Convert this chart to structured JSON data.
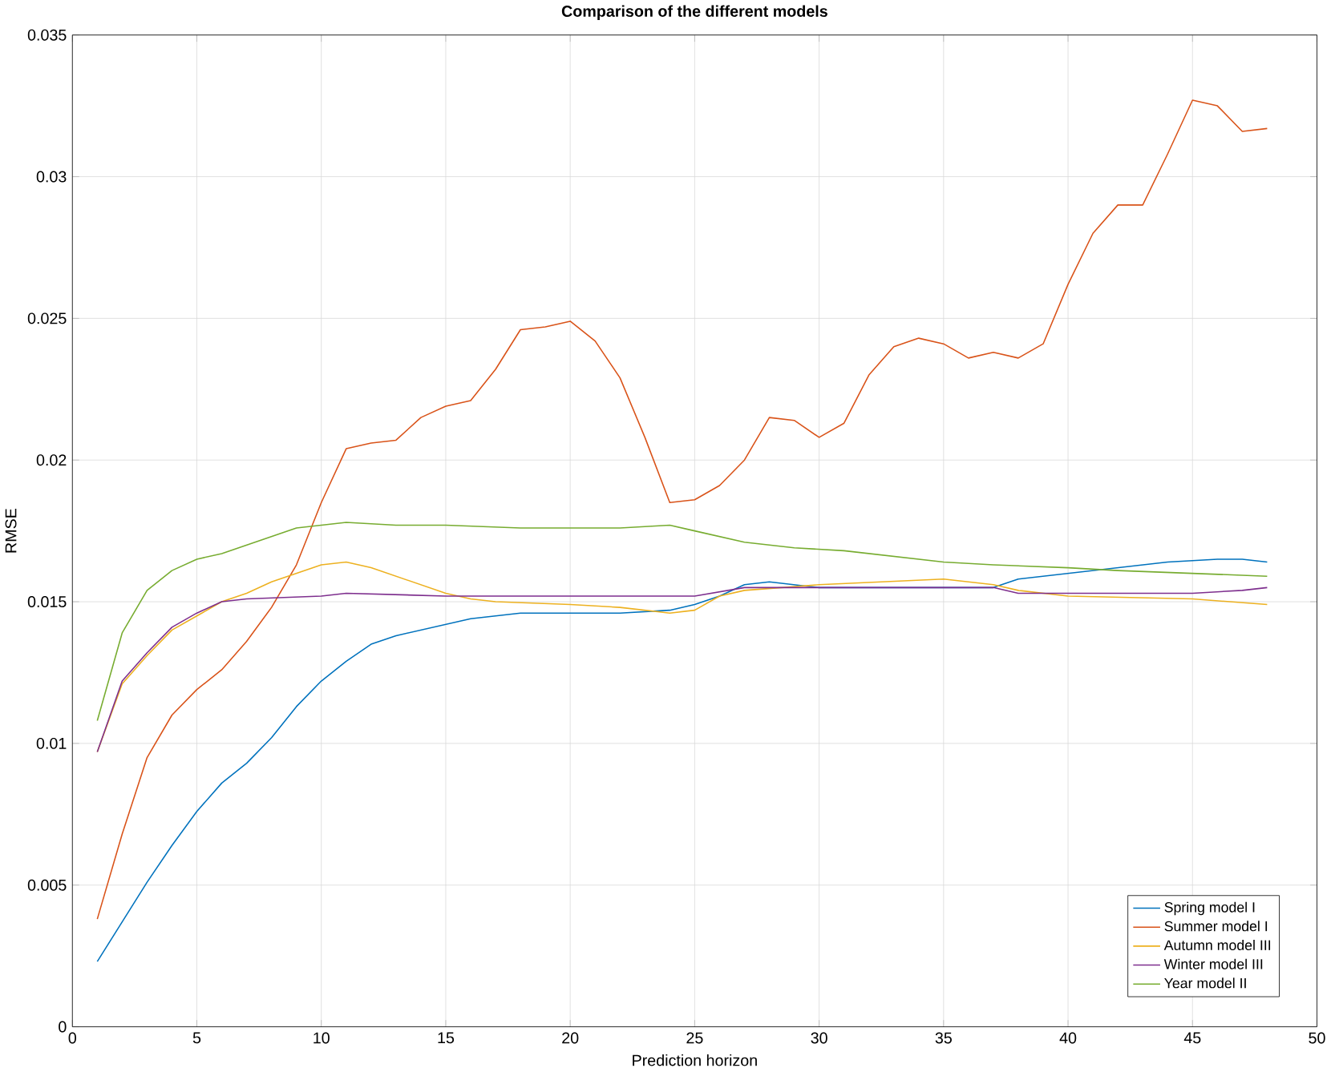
{
  "chart_data": {
    "type": "line",
    "title": "Comparison of the different models",
    "xlabel": "Prediction horizon",
    "ylabel": "RMSE",
    "xlim": [
      0,
      50
    ],
    "xticks": [
      0,
      5,
      10,
      15,
      20,
      25,
      30,
      35,
      40,
      45,
      50
    ],
    "ylim": [
      0,
      0.035
    ],
    "yticks": [
      0,
      0.005,
      0.01,
      0.015,
      0.02,
      0.025,
      0.03,
      0.035
    ],
    "grid": true,
    "legend": "bottom right",
    "line_style": "solid",
    "series": [
      {
        "name": "Spring model I",
        "color": "#0072bd",
        "x": [
          1,
          2,
          3,
          4,
          5,
          6,
          7,
          8,
          9,
          10,
          11,
          12,
          13,
          14,
          15,
          16,
          17,
          18,
          19,
          20,
          22,
          24,
          25,
          26,
          27,
          28,
          30,
          35,
          37,
          38,
          40,
          42,
          44,
          46,
          47,
          48
        ],
        "values": [
          0.0023,
          0.0037,
          0.0051,
          0.0064,
          0.0076,
          0.0086,
          0.0093,
          0.0102,
          0.0113,
          0.0122,
          0.0129,
          0.0135,
          0.0138,
          0.014,
          0.0142,
          0.0144,
          0.0145,
          0.0146,
          0.0146,
          0.0146,
          0.0146,
          0.0147,
          0.0149,
          0.0152,
          0.0156,
          0.0157,
          0.0155,
          0.0155,
          0.0155,
          0.0158,
          0.016,
          0.0162,
          0.0164,
          0.0165,
          0.0165,
          0.0164
        ]
      },
      {
        "name": "Summer model I",
        "color": "#d95319",
        "x": [
          1,
          2,
          3,
          4,
          5,
          6,
          7,
          8,
          9,
          10,
          11,
          12,
          13,
          14,
          15,
          16,
          17,
          18,
          19,
          20,
          21,
          22,
          23,
          24,
          25,
          26,
          27,
          28,
          29,
          30,
          31,
          32,
          33,
          34,
          35,
          36,
          37,
          38,
          39,
          40,
          41,
          42,
          43,
          44,
          45,
          46,
          47,
          48
        ],
        "values": [
          0.0038,
          0.0068,
          0.0095,
          0.011,
          0.0119,
          0.0126,
          0.0136,
          0.0148,
          0.0163,
          0.0185,
          0.0204,
          0.0206,
          0.0207,
          0.0215,
          0.0219,
          0.0221,
          0.0232,
          0.0246,
          0.0247,
          0.0249,
          0.0242,
          0.0229,
          0.0208,
          0.0185,
          0.0186,
          0.0191,
          0.02,
          0.0215,
          0.0214,
          0.0208,
          0.0213,
          0.023,
          0.024,
          0.0243,
          0.0241,
          0.0236,
          0.0238,
          0.0236,
          0.0241,
          0.0262,
          0.028,
          0.029,
          0.029,
          0.0308,
          0.0327,
          0.0325,
          0.0316,
          0.0317
        ]
      },
      {
        "name": "Autumn model III",
        "color": "#edb120",
        "x": [
          1,
          2,
          3,
          4,
          5,
          6,
          7,
          8,
          9,
          10,
          11,
          12,
          13,
          14,
          15,
          16,
          17,
          20,
          22,
          24,
          25,
          26,
          27,
          30,
          35,
          37,
          38,
          40,
          45,
          48
        ],
        "values": [
          0.0097,
          0.0121,
          0.0131,
          0.014,
          0.0145,
          0.015,
          0.0153,
          0.0157,
          0.016,
          0.0163,
          0.0164,
          0.0162,
          0.0159,
          0.0156,
          0.0153,
          0.0151,
          0.015,
          0.0149,
          0.0148,
          0.0146,
          0.0147,
          0.0152,
          0.0154,
          0.0156,
          0.0158,
          0.0156,
          0.0154,
          0.0152,
          0.0151,
          0.0149
        ]
      },
      {
        "name": "Winter model III",
        "color": "#7e2f8e",
        "x": [
          1,
          2,
          3,
          4,
          5,
          6,
          7,
          10,
          11,
          15,
          20,
          25,
          27,
          30,
          35,
          37,
          38,
          40,
          45,
          47,
          48
        ],
        "values": [
          0.0097,
          0.0122,
          0.0132,
          0.0141,
          0.0146,
          0.015,
          0.0151,
          0.0152,
          0.0153,
          0.0152,
          0.0152,
          0.0152,
          0.0155,
          0.0155,
          0.0155,
          0.0155,
          0.0153,
          0.0153,
          0.0153,
          0.0154,
          0.0155
        ]
      },
      {
        "name": "Year model II",
        "color": "#77ac30",
        "x": [
          1,
          2,
          3,
          4,
          5,
          6,
          7,
          8,
          9,
          10,
          11,
          13,
          15,
          18,
          20,
          22,
          24,
          25,
          27,
          29,
          31,
          33,
          35,
          37,
          40,
          42,
          45,
          48
        ],
        "values": [
          0.0108,
          0.0139,
          0.0154,
          0.0161,
          0.0165,
          0.0167,
          0.017,
          0.0173,
          0.0176,
          0.0177,
          0.0178,
          0.0177,
          0.0177,
          0.0176,
          0.0176,
          0.0176,
          0.0177,
          0.0175,
          0.0171,
          0.0169,
          0.0168,
          0.0166,
          0.0164,
          0.0163,
          0.0162,
          0.0161,
          0.016,
          0.0159
        ]
      }
    ]
  }
}
